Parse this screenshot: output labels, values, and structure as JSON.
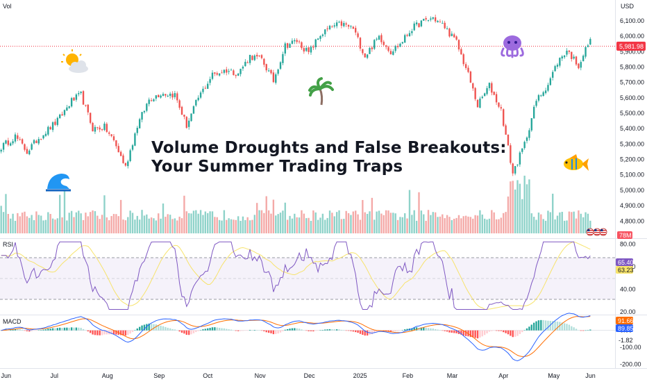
{
  "header": {
    "vol_label": "Vol",
    "currency": "USD"
  },
  "headline": {
    "line1": "Volume Droughts and False Breakouts:",
    "line2": "Your Summer Trading Traps"
  },
  "decor": {
    "sun_icon": "sun-behind-cloud-icon",
    "wave_icon": "wave-icon",
    "palm_icon": "palm-tree-icon",
    "octopus_icon": "octopus-icon",
    "fish_icon": "tropical-fish-icon",
    "flag_icon": "us-flag-icon"
  },
  "colors": {
    "up": "#26a69a",
    "down": "#ef5350",
    "up_vol": "#8ed2c9",
    "down_vol": "#f4a9a7",
    "rsi_line": "#7e57c2",
    "rsi_ma": "#f7e36b",
    "macd_line": "#2962ff",
    "signal_line": "#ff6d00",
    "last_price_bg": "#f23645"
  },
  "panels": {
    "rsi_label": "RSI",
    "macd_label": "MACD",
    "volume_badge": "78M",
    "last_price_badge": "5,981.98",
    "rsi_badges": [
      "65.40",
      "63.23"
    ],
    "macd_badges": [
      "91.66",
      "89.85",
      "-1.82"
    ]
  },
  "chart_data": [
    {
      "type": "candlestick",
      "title": "",
      "xlabel": "",
      "ylabel": "",
      "x_ticks": [
        "Jun",
        "Jul",
        "Aug",
        "Sep",
        "Oct",
        "Nov",
        "Dec",
        "2025",
        "Feb",
        "Mar",
        "Apr",
        "May",
        "Jun"
      ],
      "y_ticks": [
        4800,
        4900,
        5000,
        5100,
        5200,
        5300,
        5400,
        5500,
        5600,
        5700,
        5800,
        5900,
        6000,
        6100,
        6200
      ],
      "y_tick_labels": [
        "4,800.00",
        "4,900.00",
        "5,000.00",
        "5,100.00",
        "5,200.00",
        "5,300.00",
        "5,400.00",
        "5,500.00",
        "5,600.00",
        "5,700.00",
        "5,800.00",
        "5,900.00",
        "6,000.00",
        "6,100.00",
        "6,200.00"
      ],
      "ylim": [
        4720,
        6235
      ],
      "last_price": 5981.98,
      "close_path": {
        "x_index": [
          0,
          6,
          11,
          16,
          24,
          30,
          34,
          39,
          44,
          48,
          53,
          58,
          63,
          68,
          74,
          79,
          84,
          90,
          96,
          101,
          106,
          111,
          116,
          121,
          126,
          131,
          136,
          141,
          145,
          150,
          155,
          161,
          166,
          170,
          175,
          179,
          184,
          189,
          194,
          199,
          203,
          208,
          213,
          218,
          223,
          228,
          233,
          237,
          241,
          246,
          251
        ],
        "close": [
          5280,
          5350,
          5250,
          5340,
          5450,
          5580,
          5620,
          5400,
          5410,
          5320,
          5150,
          5420,
          5590,
          5630,
          5620,
          5420,
          5600,
          5750,
          5780,
          5760,
          5870,
          5850,
          5710,
          5940,
          5970,
          5890,
          6010,
          6060,
          6080,
          6050,
          5870,
          6000,
          5900,
          5950,
          6050,
          6090,
          6120,
          6060,
          5960,
          5750,
          5550,
          5680,
          5520,
          5110,
          5300,
          5580,
          5690,
          5830,
          5910,
          5810,
          5982
        ]
      }
    },
    {
      "type": "bar",
      "name": "Vol",
      "note_value_badge": "78M"
    },
    {
      "type": "line",
      "name": "RSI",
      "y_ticks": [
        20,
        40,
        60,
        80
      ],
      "y_tick_labels": [
        "20.00",
        "40.00",
        "60.00",
        "80.00"
      ],
      "ylim": [
        18,
        84
      ],
      "bands": [
        30,
        50,
        70
      ],
      "last_values": [
        65.4,
        63.23
      ]
    },
    {
      "type": "line",
      "name": "MACD",
      "y_ticks": [
        0,
        -100,
        -200
      ],
      "y_tick_labels": [
        "0.00",
        "-100.00",
        "-200.00"
      ],
      "ylim": [
        -215,
        85
      ],
      "last_values": [
        91.66,
        89.85,
        -1.82
      ]
    }
  ]
}
